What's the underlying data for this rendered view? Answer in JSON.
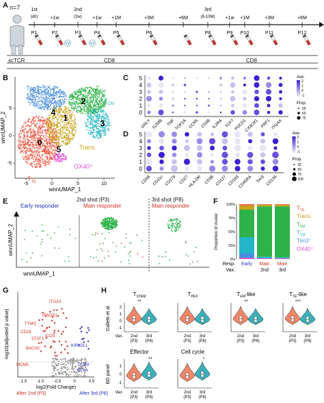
{
  "panels": {
    "A": "A",
    "B": "B",
    "C": "C",
    "D": "D",
    "E": "E",
    "F": "F",
    "G": "G",
    "H": "H"
  },
  "panelA": {
    "n_label": "n=7",
    "timepoints": [
      {
        "id": "P1",
        "top": "1st",
        "sub": "(d0)"
      },
      {
        "id": "P2",
        "top": "+1w",
        "sub": ""
      },
      {
        "id": "P3",
        "top": "2nd",
        "sub": "(3w)"
      },
      {
        "id": "P4",
        "top": "+1w",
        "sub": ""
      },
      {
        "id": "P5",
        "top": "+1M",
        "sub": ""
      },
      {
        "id": "P6",
        "top": "+3M",
        "sub": ""
      },
      {
        "id": "P7",
        "top": "+6M",
        "sub": ""
      },
      {
        "id": "P8",
        "top": "3rd",
        "sub": "(8-10M)"
      },
      {
        "id": "P9",
        "top": "+1w",
        "sub": ""
      },
      {
        "id": "P10",
        "top": "+1M",
        "sub": ""
      },
      {
        "id": "P11",
        "top": "+3M",
        "sub": ""
      },
      {
        "id": "P12",
        "top": "+6M",
        "sub": ""
      }
    ],
    "scTCR_label": "scTCR",
    "cd8_label_1": "CD8",
    "cd8_label_2": "CD8"
  },
  "panelB": {
    "xlabel": "wnnUMAP_1",
    "ylabel": "wnnUMAP_2",
    "xticks": [
      "-5",
      "0",
      "5",
      "10"
    ],
    "yticks": [
      "-5",
      "0",
      "5"
    ],
    "cluster_labels": [
      "0",
      "1",
      "2",
      "3",
      "4",
      "5"
    ],
    "type_labels": {
      "tim3": "Tim3⁺",
      "tem": "T",
      "tem_sub": "EM",
      "tcm": "T",
      "tcm_sub": "CM",
      "trans": "Trans.",
      "ox40": "OX40⁺",
      "tte": "T",
      "tte_sub": "TE"
    }
  },
  "panelC": {
    "genes": [
      "GNLY",
      "GZMB",
      "TNF",
      "TOP2A",
      "CCR5",
      "CD38",
      "IL2RA",
      "TCF7",
      "PDCD1",
      "CX3CR1",
      "PRF1",
      "ITGAX"
    ],
    "clusters": [
      "0",
      "1",
      "2",
      "3",
      "4",
      "5"
    ],
    "legend_ave": "Ave.",
    "legend_ave_ticks": [
      "2",
      "1",
      "0",
      "-1"
    ],
    "legend_prop": "Prop.",
    "legend_prop_ticks": [
      "25",
      "50",
      "75"
    ]
  },
  "panelD": {
    "markers": [
      "CD56",
      "CD11c",
      "CD279",
      "CD27",
      "HLA-DR",
      "CD38",
      "CD127",
      "CD183",
      "CD45RA",
      "Tim3",
      "CD134"
    ],
    "clusters": [
      "0",
      "1",
      "2",
      "3",
      "4",
      "5"
    ],
    "legend_ave": "Ave.",
    "legend_ave_ticks": [
      "2",
      "1",
      "0",
      "-1"
    ],
    "legend_prop": "Prop.",
    "legend_prop_ticks": [
      "25",
      "50",
      "75",
      "100"
    ]
  },
  "panelE": {
    "title_left": "2nd shot (P3)",
    "title_right": "3rd shot (P8)",
    "label_early": "Early responder",
    "label_main": "Main responder",
    "label_main3": "Main responder",
    "xlabel": "wnnUMAP_1",
    "ylabel": "wnnUMAP_2"
  },
  "panelF": {
    "ylabel": "Proportion of cluster",
    "yticks": [
      "0%",
      "25%",
      "50%",
      "75%",
      "100%"
    ],
    "categories": [
      "Early",
      "Main",
      "Main"
    ],
    "xlabel_left": "Resp.",
    "xlabel_left2": "Vax.",
    "vax_labels": [
      "2nd",
      "3rd"
    ],
    "legend": [
      {
        "label": "T",
        "sub": "TE",
        "color": "#f04e37"
      },
      {
        "label": "Trans.",
        "sub": "",
        "color": "#c8a31c"
      },
      {
        "label": "T",
        "sub": "EM",
        "color": "#2db34a"
      },
      {
        "label": "T",
        "sub": "CM",
        "color": "#22b6c8"
      },
      {
        "label": "Tim3⁺",
        "sub": "",
        "color": "#4a8fe0"
      },
      {
        "label": "OX40⁺",
        "sub": "",
        "color": "#e24fd6"
      }
    ]
  },
  "panelG": {
    "ylabel": "-log10(adjusted p value)",
    "xlabel": "log2(Fold Change)",
    "xticks": [
      "-1.5",
      "-1.0",
      "-0.5",
      "0",
      "0.5"
    ],
    "left_label": "After 2nd (P3)",
    "right_label": "After 3rd (P8)",
    "genes_red": [
      "ITGAX",
      "IFNGR1",
      "TYMS",
      "CD28",
      "ICOS",
      "STAT3",
      "BACH2",
      "MCM5"
    ],
    "genes_blue": [
      "KIR2DL1",
      "CCR9",
      "BTLA"
    ]
  },
  "panelH": {
    "ylabel_top": "Galletti et al.",
    "ylabel_bottom": "BD panel",
    "vax_label": "Vax.",
    "top_titles": [
      {
        "main": "T",
        "sub": "STEM",
        "sig": "**"
      },
      {
        "main": "T",
        "sub": "PEX",
        "sig": ""
      },
      {
        "main": "T",
        "sub": "EM",
        "suffix": "-like",
        "sig": "**"
      },
      {
        "main": "T",
        "sub": "TE",
        "suffix": "-like",
        "sig": "***"
      }
    ],
    "bottom_titles": [
      {
        "main": "Effector",
        "sig": "**"
      },
      {
        "main": "Cell cycle",
        "sig": "*"
      }
    ],
    "x_categories": [
      "2nd",
      "3rd"
    ],
    "x_sub": [
      "(P3)",
      "(P8)"
    ],
    "yticks_top": [
      "2",
      "1",
      "0",
      "-1"
    ],
    "yticks_bottom": [
      "1",
      "0",
      "-1"
    ]
  }
}
